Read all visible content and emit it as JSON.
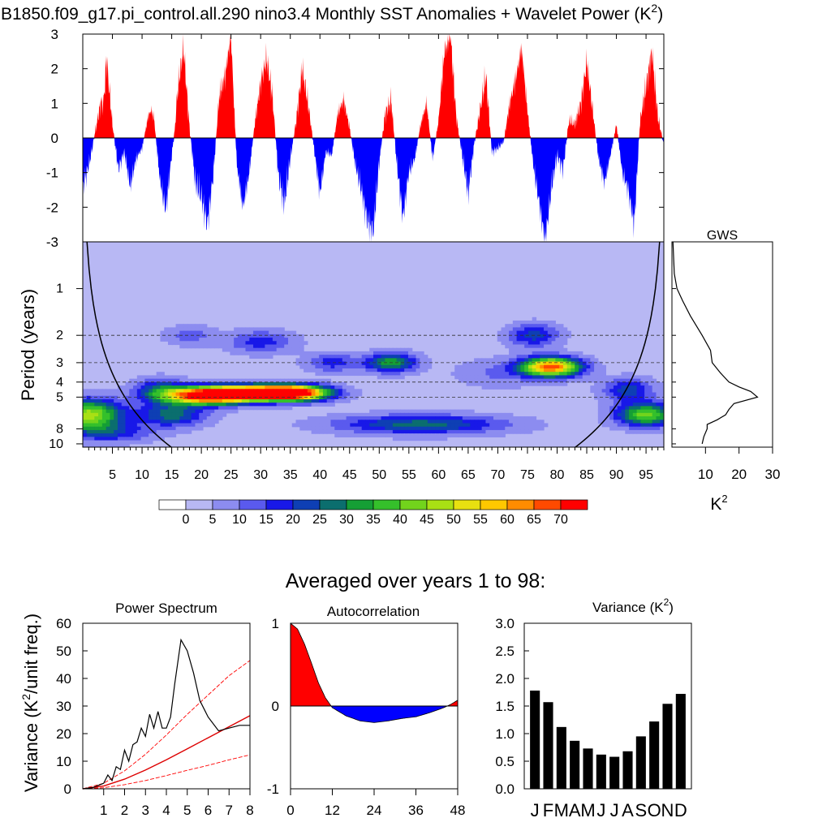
{
  "figure_title": "B1850.f09_g17.pi_control.all.290 nino3.4 Monthly SST Anomalies + Wavelet Power (K",
  "figure_title_sup": "2",
  "figure_title_close": ")",
  "averaged_title": "Averaged over years 1 to 98:",
  "k2_label": "K",
  "k2_sup": "2",
  "colors": {
    "positive": "#ff0000",
    "negative": "#0000ff",
    "contour_levels": [
      "#ffffff",
      "#b8b8f4",
      "#8c8cf0",
      "#5a5aee",
      "#1818e8",
      "#0e3fb4",
      "#0b6e6e",
      "#159f35",
      "#35c02b",
      "#72d41c",
      "#a9e014",
      "#e8e010",
      "#ffc800",
      "#ff8c00",
      "#ff4a00",
      "#ff0000"
    ]
  },
  "chart_data": [
    {
      "id": "sst_anomalies",
      "type": "area",
      "description": "Monthly SST anomaly time series (years 1-98)",
      "xlim": [
        0,
        98
      ],
      "ylim": [
        -3,
        3
      ],
      "yticks": [
        "3",
        "2",
        "1",
        "0",
        "-1",
        "-2",
        "-3"
      ],
      "x": [
        0,
        1,
        1.5,
        2,
        3,
        3.5,
        4,
        5,
        6,
        7,
        7.5,
        8,
        9,
        10,
        11,
        11.5,
        12,
        13,
        14,
        15,
        15.5,
        16,
        17,
        18,
        19,
        20,
        21,
        22,
        23,
        24,
        25,
        25.5,
        26,
        27,
        28,
        29,
        30,
        31,
        32,
        33,
        34,
        35,
        36,
        37,
        38,
        39,
        40,
        41,
        42,
        43,
        44,
        45,
        46,
        47,
        48,
        49,
        50,
        51,
        52,
        53,
        54,
        55,
        56,
        57,
        58,
        59,
        60,
        61,
        62,
        63,
        64,
        65,
        66,
        67,
        68,
        69,
        70,
        71,
        72,
        73,
        74,
        75,
        76,
        77,
        78,
        79,
        80,
        81,
        82,
        83,
        84,
        85,
        86,
        87,
        88,
        89,
        90,
        91,
        92,
        93,
        94,
        95,
        96,
        97,
        98
      ],
      "y": [
        -1.4,
        -0.8,
        -0.4,
        0.1,
        1.0,
        1.0,
        2.3,
        0.4,
        -0.9,
        -0.4,
        -0.9,
        -1.4,
        -0.6,
        -0.3,
        0.6,
        0.8,
        0.6,
        -1.2,
        -2.1,
        -0.5,
        0.2,
        1.4,
        2.6,
        0.3,
        -1.3,
        -1.7,
        -2.5,
        -1.1,
        1.2,
        1.8,
        3.0,
        1.0,
        -0.8,
        -2.0,
        -1.1,
        0.4,
        1.6,
        2.3,
        1.2,
        -1.1,
        -1.9,
        -0.6,
        0.5,
        2.0,
        1.0,
        -0.3,
        -1.6,
        -0.4,
        -0.5,
        0.7,
        1.1,
        0.3,
        -0.8,
        -1.5,
        -2.4,
        -2.7,
        -0.7,
        0.7,
        1.1,
        -0.8,
        -2.3,
        -1.0,
        -0.6,
        0.4,
        1.0,
        -0.6,
        0.5,
        2.5,
        3.0,
        0.6,
        -0.5,
        -1.6,
        -0.2,
        0.8,
        1.8,
        -0.4,
        -0.3,
        -0.1,
        1.0,
        1.7,
        2.6,
        0.8,
        -0.8,
        -1.9,
        -3.0,
        -1.5,
        -0.5,
        -0.9,
        0.5,
        0.4,
        1.0,
        2.2,
        0.8,
        -0.6,
        -1.3,
        -0.5,
        0.4,
        -1.0,
        -1.5,
        -2.5,
        0.5,
        1.5,
        2.5,
        0.6,
        -0.2
      ]
    },
    {
      "id": "wavelet_power",
      "type": "heatmap",
      "description": "Wavelet power contours",
      "ylabel": "Period (years)",
      "xlim": [
        0,
        98
      ],
      "yticks": [
        "1",
        "2",
        "3",
        "4",
        "5",
        "8",
        "10"
      ],
      "xticks": [
        "5",
        "10",
        "15",
        "20",
        "25",
        "30",
        "35",
        "40",
        "45",
        "50",
        "55",
        "60",
        "65",
        "70",
        "75",
        "80",
        "85",
        "90",
        "95"
      ],
      "reference_periods": [
        2,
        3,
        4,
        5
      ],
      "blobs": [
        {
          "x": 1,
          "period": 6.5,
          "peak": 45,
          "sx": 4,
          "sy": 0.16
        },
        {
          "x": 21,
          "period": 4.9,
          "peak": 72,
          "sx": 5,
          "sy": 0.09
        },
        {
          "x": 30,
          "period": 4.7,
          "peak": 72,
          "sx": 6,
          "sy": 0.08
        },
        {
          "x": 36,
          "period": 4.7,
          "peak": 50,
          "sx": 4,
          "sy": 0.08
        },
        {
          "x": 13,
          "period": 4.5,
          "peak": 20,
          "sx": 3,
          "sy": 0.12
        },
        {
          "x": 15,
          "period": 6.5,
          "peak": 25,
          "sx": 4,
          "sy": 0.12
        },
        {
          "x": 5,
          "period": 8.5,
          "peak": 15,
          "sx": 5,
          "sy": 0.1
        },
        {
          "x": 57,
          "period": 7.5,
          "peak": 25,
          "sx": 10,
          "sy": 0.1
        },
        {
          "x": 52,
          "period": 3.0,
          "peak": 32,
          "sx": 3,
          "sy": 0.1
        },
        {
          "x": 42,
          "period": 3.0,
          "peak": 15,
          "sx": 3,
          "sy": 0.1
        },
        {
          "x": 30,
          "period": 2.2,
          "peak": 15,
          "sx": 4,
          "sy": 0.12
        },
        {
          "x": 79,
          "period": 3.2,
          "peak": 65,
          "sx": 3.5,
          "sy": 0.1
        },
        {
          "x": 76,
          "period": 2.0,
          "peak": 20,
          "sx": 3,
          "sy": 0.12
        },
        {
          "x": 95,
          "period": 6.5,
          "peak": 40,
          "sx": 3.5,
          "sy": 0.12
        },
        {
          "x": 92,
          "period": 4.5,
          "peak": 20,
          "sx": 3,
          "sy": 0.12
        },
        {
          "x": 70,
          "period": 3.5,
          "peak": 8,
          "sx": 5,
          "sy": 0.15
        },
        {
          "x": 18,
          "period": 2.0,
          "peak": 10,
          "sx": 3,
          "sy": 0.1
        }
      ]
    },
    {
      "id": "colorbar",
      "type": "colorbar",
      "labels": [
        "0",
        "5",
        "10",
        "15",
        "20",
        "25",
        "30",
        "35",
        "40",
        "45",
        "50",
        "55",
        "60",
        "65",
        "70"
      ]
    },
    {
      "id": "gws",
      "type": "line",
      "title": "GWS",
      "xlabel": "K",
      "xlim": [
        0,
        30
      ],
      "xticks": [
        "10",
        "20",
        "30"
      ],
      "period": [
        0.5,
        0.8,
        1.0,
        1.2,
        1.5,
        2.0,
        2.5,
        3.0,
        3.5,
        4.0,
        4.3,
        4.6,
        5.0,
        5.5,
        6.0,
        6.5,
        7.0,
        7.5,
        8.0,
        9.0,
        10.0
      ],
      "power": [
        0.3,
        0.7,
        1.5,
        3.2,
        5.5,
        9.0,
        11.5,
        12.0,
        14.5,
        17.0,
        20.0,
        23.5,
        25.5,
        18.5,
        17.0,
        16.0,
        13.5,
        10.5,
        10.5,
        9.5,
        9.0
      ]
    },
    {
      "id": "power_spectrum",
      "type": "line",
      "title": "Power Spectrum",
      "ylabel": "Variance (K",
      "ylabel_sup": "2",
      "ylabel_end": "/unit freq.)",
      "xlim": [
        0,
        8
      ],
      "ylim": [
        0,
        60
      ],
      "yticks": [
        "60",
        "50",
        "40",
        "30",
        "20",
        "10",
        "0"
      ],
      "xticks": [
        "1",
        "2",
        "3",
        "4",
        "5",
        "6",
        "7",
        "8"
      ],
      "spectrum": {
        "x": [
          0,
          0.5,
          1.0,
          1.2,
          1.4,
          1.6,
          1.8,
          2.0,
          2.2,
          2.4,
          2.6,
          2.8,
          3.0,
          3.2,
          3.4,
          3.6,
          3.8,
          4.0,
          4.2,
          4.4,
          4.7,
          5.0,
          5.3,
          5.6,
          6.0,
          6.5,
          7.0,
          7.5,
          8.0
        ],
        "y": [
          0,
          0.5,
          2,
          5,
          3,
          8,
          7,
          14,
          10,
          16,
          17,
          22,
          19,
          27,
          22,
          28,
          22,
          22,
          26,
          38,
          54,
          50,
          42,
          32,
          26,
          21,
          22,
          23,
          23
        ]
      },
      "red_noise": {
        "x": [
          0,
          1,
          2,
          3,
          4,
          5,
          6,
          7,
          8
        ],
        "y": [
          0,
          1,
          3.5,
          6.8,
          10.5,
          14.5,
          18.5,
          22.5,
          26.5
        ]
      },
      "upper_bound": {
        "x": [
          0,
          1,
          2,
          3,
          4,
          5,
          6,
          7,
          8
        ],
        "y": [
          0,
          2,
          6.5,
          12.5,
          19.5,
          27,
          34,
          41,
          46.5
        ]
      },
      "lower_bound": {
        "x": [
          0,
          1,
          2,
          3,
          4,
          5,
          6,
          7,
          8
        ],
        "y": [
          0,
          0.4,
          1.5,
          3,
          4.8,
          6.7,
          8.5,
          10.5,
          12.3
        ]
      }
    },
    {
      "id": "autocorrelation",
      "type": "area",
      "title": "Autocorrelation",
      "xlim": [
        0,
        48
      ],
      "ylim": [
        -1,
        1
      ],
      "yticks": [
        "1",
        "0",
        "-1"
      ],
      "xticks": [
        "0",
        "12",
        "24",
        "36",
        "48"
      ],
      "x": [
        0,
        2,
        4,
        6,
        8,
        10,
        12,
        16,
        20,
        24,
        28,
        32,
        36,
        40,
        44,
        46,
        48
      ],
      "y": [
        1.0,
        0.93,
        0.75,
        0.52,
        0.28,
        0.1,
        -0.02,
        -0.12,
        -0.18,
        -0.2,
        -0.18,
        -0.15,
        -0.13,
        -0.08,
        -0.02,
        0.02,
        0.07
      ]
    },
    {
      "id": "variance",
      "type": "bar",
      "title": "Variance (K",
      "title_sup": "2",
      "title_close": ")",
      "ylim": [
        0,
        3
      ],
      "yticks": [
        "3.0",
        "2.5",
        "2.0",
        "1.5",
        "1.0",
        "0.5",
        "0.0"
      ],
      "categories": [
        "J",
        "F",
        "M",
        "A",
        "M",
        "J",
        "J",
        "A",
        "S",
        "O",
        "N",
        "D"
      ],
      "values": [
        1.78,
        1.57,
        1.12,
        0.87,
        0.73,
        0.62,
        0.58,
        0.68,
        0.95,
        1.22,
        1.54,
        1.72
      ]
    }
  ]
}
